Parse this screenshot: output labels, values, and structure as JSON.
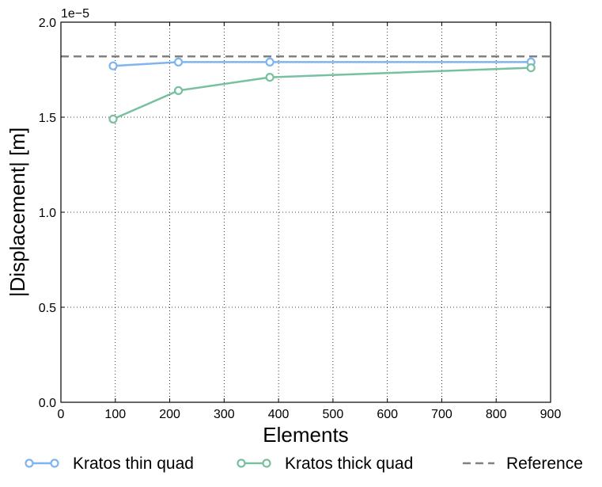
{
  "chart_data": {
    "type": "line",
    "title": "",
    "xlabel": "Elements",
    "ylabel": "|Displacement| [m]",
    "y_scale_label": "1e−5",
    "xlim": [
      0,
      900
    ],
    "ylim": [
      0.0,
      2.0
    ],
    "grid": true,
    "xticks": [
      0,
      100,
      200,
      300,
      400,
      500,
      600,
      700,
      800,
      900
    ],
    "xtick_labels": [
      "0",
      "100",
      "200",
      "300",
      "400",
      "500",
      "600",
      "700",
      "800",
      "900"
    ],
    "yticks": [
      0.0,
      0.5,
      1.0,
      1.5,
      2.0
    ],
    "ytick_labels": [
      "0.0",
      "0.5",
      "1.0",
      "1.5",
      "2.0"
    ],
    "x": [
      96,
      216,
      384,
      864
    ],
    "series": [
      {
        "name": "Kratos thin quad",
        "values": [
          1.77,
          1.79,
          1.79,
          1.79
        ],
        "color": "#7eb4f0",
        "marker": "circle",
        "style": "solid"
      },
      {
        "name": "Kratos thick quad",
        "values": [
          1.49,
          1.64,
          1.71,
          1.76
        ],
        "color": "#78c0a0",
        "marker": "circle",
        "style": "solid"
      }
    ],
    "reference": {
      "name": "Reference",
      "value": 1.82,
      "color": "#808080",
      "style": "dashed"
    },
    "legend_position": "bottom"
  }
}
